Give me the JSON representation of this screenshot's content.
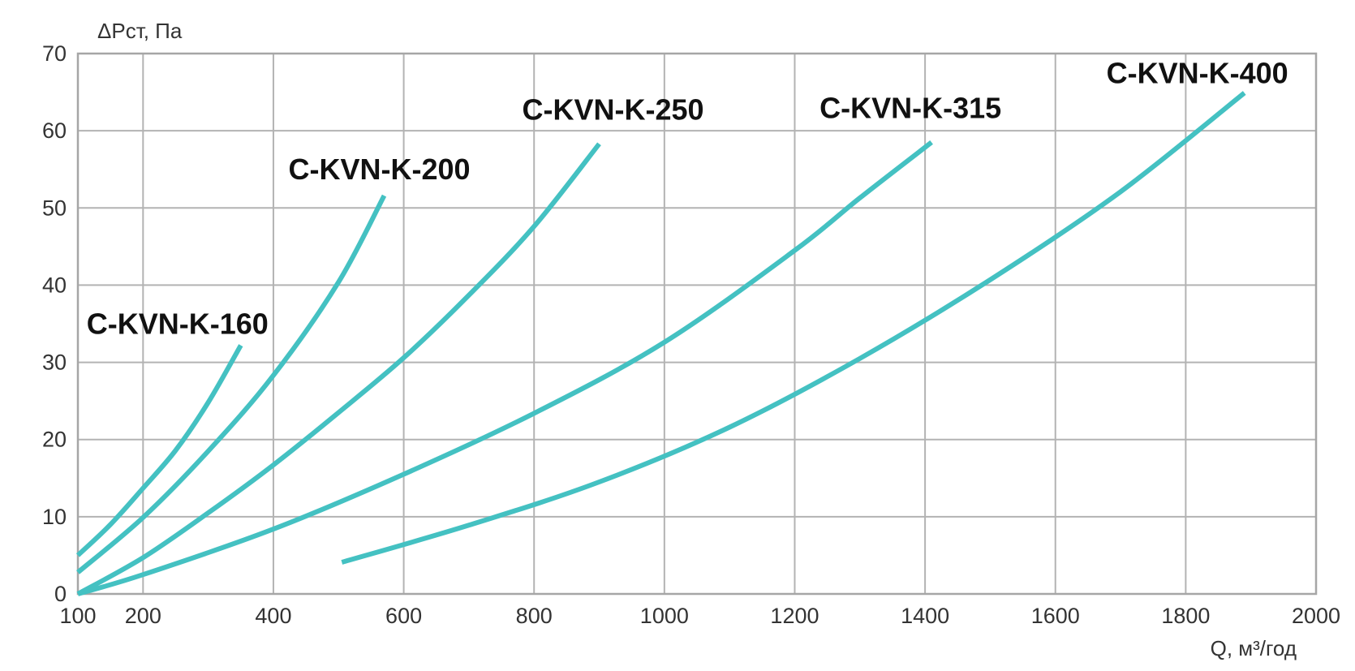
{
  "chart_data": {
    "type": "line",
    "title": "",
    "xlabel": "Q, м³/год",
    "ylabel": "ΔPст, Па",
    "xlim": [
      100,
      2000
    ],
    "ylim": [
      0,
      70
    ],
    "x_ticks": [
      100,
      200,
      400,
      600,
      800,
      1000,
      1200,
      1400,
      1600,
      1800,
      2000
    ],
    "y_ticks": [
      0,
      10,
      20,
      30,
      40,
      50,
      60,
      70
    ],
    "grid": true,
    "legend": "inline labels at curve ends",
    "line_color": "#44c1c2",
    "series": [
      {
        "name": "C-KVN-K-160",
        "points": [
          [
            100,
            5
          ],
          [
            150,
            9
          ],
          [
            200,
            13.7
          ],
          [
            250,
            18.6
          ],
          [
            300,
            24.8
          ],
          [
            350,
            32.2
          ]
        ]
      },
      {
        "name": "C-KVN-K-200",
        "points": [
          [
            100,
            2.8
          ],
          [
            200,
            9.9
          ],
          [
            300,
            18.5
          ],
          [
            400,
            28.3
          ],
          [
            500,
            40.4
          ],
          [
            570,
            51.6
          ]
        ]
      },
      {
        "name": "C-KVN-K-250",
        "points": [
          [
            100,
            0
          ],
          [
            200,
            4.7
          ],
          [
            300,
            10.5
          ],
          [
            400,
            16.7
          ],
          [
            500,
            23.5
          ],
          [
            600,
            30.6
          ],
          [
            700,
            38.7
          ],
          [
            800,
            47.6
          ],
          [
            900,
            58.3
          ]
        ]
      },
      {
        "name": "C-KVN-K-315",
        "points": [
          [
            100,
            0
          ],
          [
            200,
            2.5
          ],
          [
            400,
            8.4
          ],
          [
            600,
            15.5
          ],
          [
            800,
            23.4
          ],
          [
            1000,
            32.6
          ],
          [
            1200,
            44.5
          ],
          [
            1300,
            51.3
          ],
          [
            1410,
            58.5
          ]
        ]
      },
      {
        "name": "C-KVN-K-400",
        "points": [
          [
            505,
            4.1
          ],
          [
            700,
            8.9
          ],
          [
            900,
            14.5
          ],
          [
            1100,
            21.6
          ],
          [
            1300,
            30.5
          ],
          [
            1500,
            40.7
          ],
          [
            1700,
            52.1
          ],
          [
            1890,
            64.9
          ]
        ]
      }
    ]
  }
}
